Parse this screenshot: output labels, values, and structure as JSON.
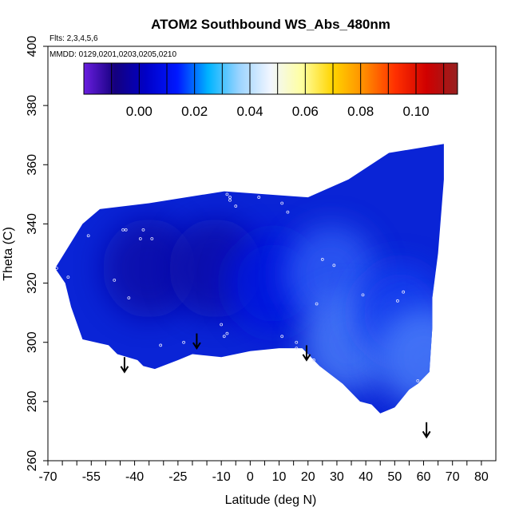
{
  "chart_data": {
    "type": "heatmap",
    "title": "ATOM2 Southbound WS_Abs_480nm",
    "annotations": [
      "Flts: 2,3,4,5,6",
      "MMDD: 0129,0201,0203,0205,0210"
    ],
    "xlabel": "Latitude (deg N)",
    "ylabel": "Theta (C)",
    "xlim": [
      -70,
      85
    ],
    "ylim": [
      260,
      400
    ],
    "x_tick_labels": [
      "-70",
      "-55",
      "-40",
      "-25",
      "-10",
      "0",
      "10",
      "20",
      "30",
      "40",
      "50",
      "60",
      "70",
      "80"
    ],
    "x_tick_values": [
      -70,
      -55,
      -40,
      -25,
      -10,
      0,
      10,
      20,
      30,
      40,
      50,
      60,
      70,
      80
    ],
    "y_ticks": [
      260,
      280,
      300,
      320,
      340,
      360,
      380,
      400
    ],
    "colorbar": {
      "range": [
        -0.02,
        0.115
      ],
      "ticks": [
        "0.00",
        "0.02",
        "0.04",
        "0.06",
        "0.08",
        "0.10"
      ],
      "tick_values": [
        0.0,
        0.02,
        0.04,
        0.06,
        0.08,
        0.1
      ],
      "colors": [
        "#6a1ee0",
        "#14007e",
        "#0000c8",
        "#0018ff",
        "#00b4ff",
        "#9cd4ff",
        "#f2f6ff",
        "#ffffa0",
        "#ffd400",
        "#ff8c00",
        "#ff3000",
        "#d00000",
        "#962020"
      ]
    },
    "field_outline": [
      [
        -67.5,
        325
      ],
      [
        -58,
        340
      ],
      [
        -52,
        345
      ],
      [
        -35,
        347
      ],
      [
        -9,
        351
      ],
      [
        20,
        349
      ],
      [
        34,
        355
      ],
      [
        48,
        364
      ],
      [
        67,
        367
      ],
      [
        67,
        355
      ],
      [
        65,
        330
      ],
      [
        63,
        315
      ],
      [
        63,
        305
      ],
      [
        62,
        290
      ],
      [
        58,
        286
      ],
      [
        55,
        284
      ],
      [
        50,
        278
      ],
      [
        45,
        276
      ],
      [
        42,
        279
      ],
      [
        38,
        280
      ],
      [
        32,
        286
      ],
      [
        24,
        292
      ],
      [
        18,
        298
      ],
      [
        10,
        298
      ],
      [
        0,
        297
      ],
      [
        -10,
        295
      ],
      [
        -20,
        296
      ],
      [
        -25,
        294
      ],
      [
        -33,
        291
      ],
      [
        -37,
        292
      ],
      [
        -39,
        294
      ],
      [
        -46,
        296
      ],
      [
        -49,
        299
      ],
      [
        -58,
        301
      ],
      [
        -62,
        312
      ],
      [
        -64,
        320
      ],
      [
        -67.5,
        325
      ]
    ],
    "field_blobs": [
      {
        "x": -35,
        "y": 325,
        "value": -0.008
      },
      {
        "x": -12,
        "y": 325,
        "value": -0.005
      },
      {
        "x": 8,
        "y": 320,
        "value": 0.0
      },
      {
        "x": 28,
        "y": 323,
        "value": 0.012
      },
      {
        "x": 34,
        "y": 300,
        "value": 0.014
      },
      {
        "x": 52,
        "y": 310,
        "value": 0.006
      },
      {
        "x": 60,
        "y": 295,
        "value": 0.016
      }
    ],
    "sample_points": [
      [
        -67,
        325
      ],
      [
        -63,
        322
      ],
      [
        -56,
        336
      ],
      [
        -47,
        321
      ],
      [
        -44,
        338
      ],
      [
        -43,
        338
      ],
      [
        -42,
        315
      ],
      [
        -38,
        335
      ],
      [
        -37,
        338
      ],
      [
        -34,
        335
      ],
      [
        -31,
        299
      ],
      [
        -23,
        300
      ],
      [
        -10,
        306
      ],
      [
        -9,
        302
      ],
      [
        -8,
        303
      ],
      [
        -8,
        350
      ],
      [
        -7,
        349
      ],
      [
        -7,
        348
      ],
      [
        -5,
        346
      ],
      [
        3,
        349
      ],
      [
        11,
        347
      ],
      [
        13,
        344
      ],
      [
        11,
        302
      ],
      [
        16,
        300
      ],
      [
        16,
        298
      ],
      [
        22,
        294
      ],
      [
        23,
        313
      ],
      [
        25,
        328
      ],
      [
        29,
        326
      ],
      [
        39,
        316
      ],
      [
        51,
        314
      ],
      [
        53,
        317
      ],
      [
        58,
        287
      ]
    ],
    "arrows": [
      {
        "x": -43.5,
        "y_top": 295,
        "y_bottom": 290
      },
      {
        "x": -18.5,
        "y_top": 303,
        "y_bottom": 298
      },
      {
        "x": 19.5,
        "y_top": 299,
        "y_bottom": 294
      },
      {
        "x": 61,
        "y_top": 273,
        "y_bottom": 268
      }
    ]
  }
}
